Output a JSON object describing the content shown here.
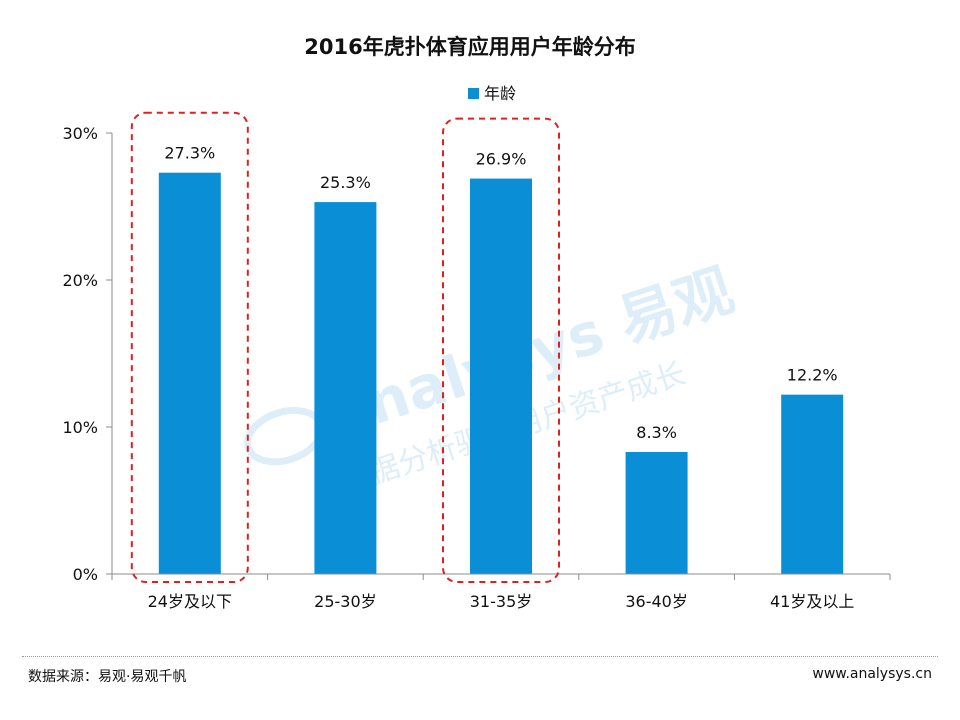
{
  "chart_data": {
    "type": "bar",
    "title": "2016年虎扑体育应用用户年龄分布",
    "categories": [
      "24岁及以下",
      "25-30岁",
      "31-35岁",
      "36-40岁",
      "41岁及以上"
    ],
    "series": [
      {
        "name": "年龄",
        "values": [
          27.3,
          25.3,
          26.9,
          8.3,
          12.2
        ]
      }
    ],
    "data_labels": [
      "27.3%",
      "25.3%",
      "26.9%",
      "8.3%",
      "12.2%"
    ],
    "yticks": [
      0,
      10,
      20,
      30
    ],
    "ytick_labels": [
      "0%",
      "10%",
      "20%",
      "30%"
    ],
    "ylim": [
      0,
      30
    ],
    "xlabel": "",
    "ylabel": "",
    "grid": false,
    "legend_position": "top-center",
    "bar_color": "#0a8fd6",
    "highlighted_categories": [
      "24岁及以下",
      "31-35岁"
    ],
    "highlight_color": "#e02020"
  },
  "watermark": {
    "brand": "analysys 易观",
    "tagline": "数据分析驱动用户资产成长"
  },
  "footer": {
    "source": "数据来源：易观·易观千帆",
    "website": "www.analysys.cn"
  }
}
